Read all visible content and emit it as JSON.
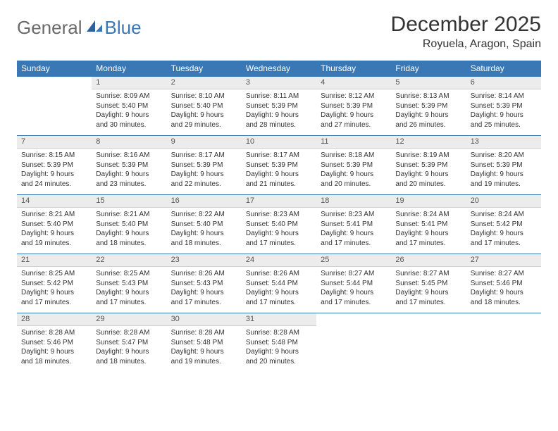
{
  "brand": {
    "part1": "General",
    "part2": "Blue"
  },
  "title": "December 2025",
  "location": "Royuela, Aragon, Spain",
  "colors": {
    "header_bg": "#3a78b5",
    "header_text": "#ffffff",
    "daynum_bg": "#ececec",
    "row_border": "#3a78b5",
    "text": "#333333",
    "logo_gray": "#6b6b6b",
    "logo_blue": "#3a78b5"
  },
  "typography": {
    "title_fontsize": 30,
    "location_fontsize": 16,
    "header_fontsize": 12,
    "daynum_fontsize": 11,
    "body_fontsize": 10
  },
  "daysOfWeek": [
    "Sunday",
    "Monday",
    "Tuesday",
    "Wednesday",
    "Thursday",
    "Friday",
    "Saturday"
  ],
  "weeks": [
    {
      "nums": [
        "",
        "1",
        "2",
        "3",
        "4",
        "5",
        "6"
      ],
      "cells": [
        null,
        {
          "sunrise": "Sunrise: 8:09 AM",
          "sunset": "Sunset: 5:40 PM",
          "d1": "Daylight: 9 hours",
          "d2": "and 30 minutes."
        },
        {
          "sunrise": "Sunrise: 8:10 AM",
          "sunset": "Sunset: 5:40 PM",
          "d1": "Daylight: 9 hours",
          "d2": "and 29 minutes."
        },
        {
          "sunrise": "Sunrise: 8:11 AM",
          "sunset": "Sunset: 5:39 PM",
          "d1": "Daylight: 9 hours",
          "d2": "and 28 minutes."
        },
        {
          "sunrise": "Sunrise: 8:12 AM",
          "sunset": "Sunset: 5:39 PM",
          "d1": "Daylight: 9 hours",
          "d2": "and 27 minutes."
        },
        {
          "sunrise": "Sunrise: 8:13 AM",
          "sunset": "Sunset: 5:39 PM",
          "d1": "Daylight: 9 hours",
          "d2": "and 26 minutes."
        },
        {
          "sunrise": "Sunrise: 8:14 AM",
          "sunset": "Sunset: 5:39 PM",
          "d1": "Daylight: 9 hours",
          "d2": "and 25 minutes."
        }
      ]
    },
    {
      "nums": [
        "7",
        "8",
        "9",
        "10",
        "11",
        "12",
        "13"
      ],
      "cells": [
        {
          "sunrise": "Sunrise: 8:15 AM",
          "sunset": "Sunset: 5:39 PM",
          "d1": "Daylight: 9 hours",
          "d2": "and 24 minutes."
        },
        {
          "sunrise": "Sunrise: 8:16 AM",
          "sunset": "Sunset: 5:39 PM",
          "d1": "Daylight: 9 hours",
          "d2": "and 23 minutes."
        },
        {
          "sunrise": "Sunrise: 8:17 AM",
          "sunset": "Sunset: 5:39 PM",
          "d1": "Daylight: 9 hours",
          "d2": "and 22 minutes."
        },
        {
          "sunrise": "Sunrise: 8:17 AM",
          "sunset": "Sunset: 5:39 PM",
          "d1": "Daylight: 9 hours",
          "d2": "and 21 minutes."
        },
        {
          "sunrise": "Sunrise: 8:18 AM",
          "sunset": "Sunset: 5:39 PM",
          "d1": "Daylight: 9 hours",
          "d2": "and 20 minutes."
        },
        {
          "sunrise": "Sunrise: 8:19 AM",
          "sunset": "Sunset: 5:39 PM",
          "d1": "Daylight: 9 hours",
          "d2": "and 20 minutes."
        },
        {
          "sunrise": "Sunrise: 8:20 AM",
          "sunset": "Sunset: 5:39 PM",
          "d1": "Daylight: 9 hours",
          "d2": "and 19 minutes."
        }
      ]
    },
    {
      "nums": [
        "14",
        "15",
        "16",
        "17",
        "18",
        "19",
        "20"
      ],
      "cells": [
        {
          "sunrise": "Sunrise: 8:21 AM",
          "sunset": "Sunset: 5:40 PM",
          "d1": "Daylight: 9 hours",
          "d2": "and 19 minutes."
        },
        {
          "sunrise": "Sunrise: 8:21 AM",
          "sunset": "Sunset: 5:40 PM",
          "d1": "Daylight: 9 hours",
          "d2": "and 18 minutes."
        },
        {
          "sunrise": "Sunrise: 8:22 AM",
          "sunset": "Sunset: 5:40 PM",
          "d1": "Daylight: 9 hours",
          "d2": "and 18 minutes."
        },
        {
          "sunrise": "Sunrise: 8:23 AM",
          "sunset": "Sunset: 5:40 PM",
          "d1": "Daylight: 9 hours",
          "d2": "and 17 minutes."
        },
        {
          "sunrise": "Sunrise: 8:23 AM",
          "sunset": "Sunset: 5:41 PM",
          "d1": "Daylight: 9 hours",
          "d2": "and 17 minutes."
        },
        {
          "sunrise": "Sunrise: 8:24 AM",
          "sunset": "Sunset: 5:41 PM",
          "d1": "Daylight: 9 hours",
          "d2": "and 17 minutes."
        },
        {
          "sunrise": "Sunrise: 8:24 AM",
          "sunset": "Sunset: 5:42 PM",
          "d1": "Daylight: 9 hours",
          "d2": "and 17 minutes."
        }
      ]
    },
    {
      "nums": [
        "21",
        "22",
        "23",
        "24",
        "25",
        "26",
        "27"
      ],
      "cells": [
        {
          "sunrise": "Sunrise: 8:25 AM",
          "sunset": "Sunset: 5:42 PM",
          "d1": "Daylight: 9 hours",
          "d2": "and 17 minutes."
        },
        {
          "sunrise": "Sunrise: 8:25 AM",
          "sunset": "Sunset: 5:43 PM",
          "d1": "Daylight: 9 hours",
          "d2": "and 17 minutes."
        },
        {
          "sunrise": "Sunrise: 8:26 AM",
          "sunset": "Sunset: 5:43 PM",
          "d1": "Daylight: 9 hours",
          "d2": "and 17 minutes."
        },
        {
          "sunrise": "Sunrise: 8:26 AM",
          "sunset": "Sunset: 5:44 PM",
          "d1": "Daylight: 9 hours",
          "d2": "and 17 minutes."
        },
        {
          "sunrise": "Sunrise: 8:27 AM",
          "sunset": "Sunset: 5:44 PM",
          "d1": "Daylight: 9 hours",
          "d2": "and 17 minutes."
        },
        {
          "sunrise": "Sunrise: 8:27 AM",
          "sunset": "Sunset: 5:45 PM",
          "d1": "Daylight: 9 hours",
          "d2": "and 17 minutes."
        },
        {
          "sunrise": "Sunrise: 8:27 AM",
          "sunset": "Sunset: 5:46 PM",
          "d1": "Daylight: 9 hours",
          "d2": "and 18 minutes."
        }
      ]
    },
    {
      "nums": [
        "28",
        "29",
        "30",
        "31",
        "",
        "",
        ""
      ],
      "cells": [
        {
          "sunrise": "Sunrise: 8:28 AM",
          "sunset": "Sunset: 5:46 PM",
          "d1": "Daylight: 9 hours",
          "d2": "and 18 minutes."
        },
        {
          "sunrise": "Sunrise: 8:28 AM",
          "sunset": "Sunset: 5:47 PM",
          "d1": "Daylight: 9 hours",
          "d2": "and 18 minutes."
        },
        {
          "sunrise": "Sunrise: 8:28 AM",
          "sunset": "Sunset: 5:48 PM",
          "d1": "Daylight: 9 hours",
          "d2": "and 19 minutes."
        },
        {
          "sunrise": "Sunrise: 8:28 AM",
          "sunset": "Sunset: 5:48 PM",
          "d1": "Daylight: 9 hours",
          "d2": "and 20 minutes."
        },
        null,
        null,
        null
      ]
    }
  ]
}
